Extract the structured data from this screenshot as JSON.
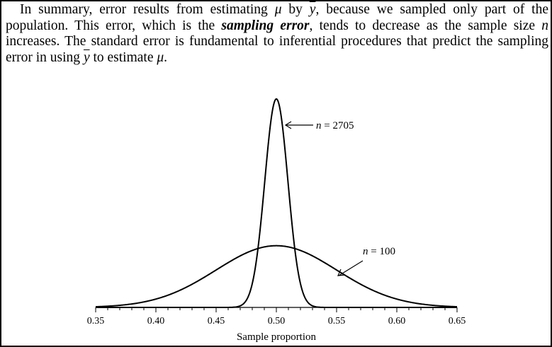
{
  "paragraph": {
    "seg1": "In summary, error results from estimating ",
    "mu": "μ",
    "seg2": " by ",
    "ybar": "y",
    "seg3": ", because we sampled only part of the population. This error, which is the ",
    "term": "sampling error",
    "seg4": ", tends to decrease as the sample size ",
    "n": "n",
    "seg5": " increases. The standard error is fundamental to inferential procedures that predict the sampling error in using ",
    "ybar2": "y",
    "seg6": " to estimate ",
    "mu2": "μ",
    "seg7": "."
  },
  "chart_data": {
    "type": "line",
    "xlabel": "Sample proportion",
    "ylabel": "",
    "title": "",
    "xlim": [
      0.35,
      0.65
    ],
    "x_ticks": [
      "0.35",
      "0.40",
      "0.45",
      "0.50",
      "0.55",
      "0.60",
      "0.65"
    ],
    "x_tick_values": [
      0.35,
      0.4,
      0.45,
      0.5,
      0.55,
      0.6,
      0.65
    ],
    "series": [
      {
        "name": "n = 2705",
        "mean": 0.5,
        "sd": 0.0096,
        "peak_relative": 1.0
      },
      {
        "name": "n = 100",
        "mean": 0.5,
        "sd": 0.05,
        "peak_relative": 0.296
      }
    ],
    "annotations": [
      {
        "text": "n = 2705",
        "label_n": "n",
        "label_rest": " = 2705",
        "points_to": "n = 2705"
      },
      {
        "text": "n = 100",
        "label_n": "n",
        "label_rest": " = 100",
        "points_to": "n = 100"
      }
    ],
    "grid": false,
    "legend": "none"
  }
}
